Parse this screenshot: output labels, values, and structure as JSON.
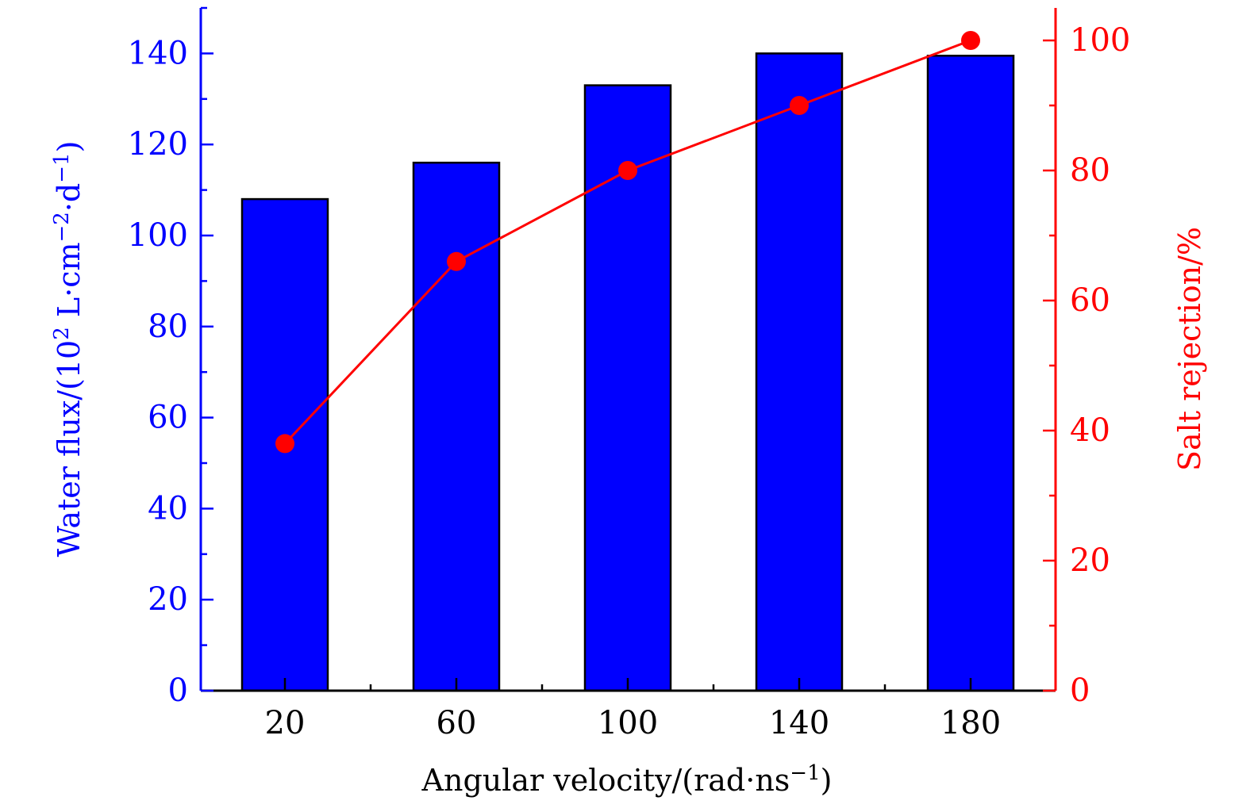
{
  "chart_data": {
    "type": "bar+line",
    "x": [
      20,
      60,
      100,
      140,
      180
    ],
    "categories": [
      "20",
      "60",
      "100",
      "140",
      "180"
    ],
    "xlabel": "Angular velocity/(rad·ns",
    "xlabel_sup": "−1",
    "xlabel_end": ")",
    "series": [
      {
        "name": "Water flux",
        "type": "bar",
        "axis": "left",
        "color": "#0000ff",
        "values": [
          108,
          116,
          133,
          140,
          139.5
        ]
      },
      {
        "name": "Salt rejection",
        "type": "line",
        "axis": "right",
        "color": "#ff0000",
        "values": [
          38,
          66,
          80,
          90,
          100
        ]
      }
    ],
    "y_left": {
      "label_parts": [
        {
          "text": "Water flux/(10",
          "sup": false
        },
        {
          "text": "2",
          "sup": true
        },
        {
          "text": " L·cm",
          "sup": false
        },
        {
          "text": "−2",
          "sup": true
        },
        {
          "text": "·d",
          "sup": false
        },
        {
          "text": "−1",
          "sup": true
        },
        {
          "text": ")",
          "sup": false
        }
      ],
      "ylim": [
        0,
        150
      ],
      "ticks": [
        "0",
        "20",
        "40",
        "60",
        "80",
        "100",
        "120",
        "140"
      ],
      "color": "#0000ff"
    },
    "y_right": {
      "label": "Salt rejection/%",
      "ylim": [
        0,
        105
      ],
      "ticks": [
        "0",
        "20",
        "40",
        "60",
        "80",
        "100"
      ],
      "color": "#ff0000"
    },
    "grid": false
  }
}
